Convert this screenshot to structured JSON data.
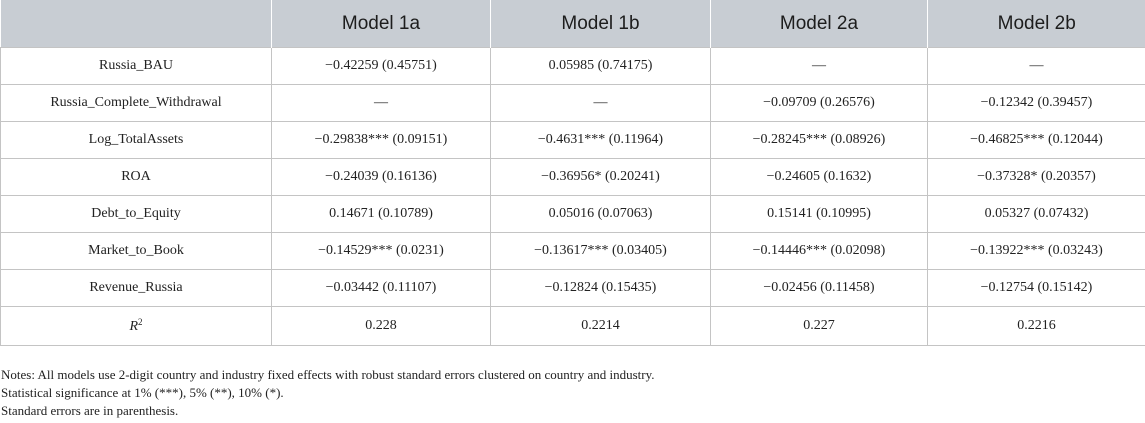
{
  "table": {
    "columns": [
      "",
      "Model 1a",
      "Model 1b",
      "Model 2a",
      "Model 2b"
    ],
    "rows": [
      {
        "label": "Russia_BAU",
        "cells": [
          "−0.42259 (0.45751)",
          "0.05985 (0.74175)",
          "—",
          "—"
        ]
      },
      {
        "label": "Russia_Complete_Withdrawal",
        "cells": [
          "—",
          "—",
          "−0.09709 (0.26576)",
          "−0.12342 (0.39457)"
        ]
      },
      {
        "label": "Log_TotalAssets",
        "cells": [
          "−0.29838*** (0.09151)",
          "−0.4631*** (0.11964)",
          "−0.28245*** (0.08926)",
          "−0.46825*** (0.12044)"
        ]
      },
      {
        "label": "ROA",
        "cells": [
          "−0.24039 (0.16136)",
          "−0.36956* (0.20241)",
          "−0.24605 (0.1632)",
          "−0.37328* (0.20357)"
        ]
      },
      {
        "label": "Debt_to_Equity",
        "cells": [
          "0.14671 (0.10789)",
          "0.05016 (0.07063)",
          "0.15141 (0.10995)",
          "0.05327 (0.07432)"
        ]
      },
      {
        "label": "Market_to_Book",
        "cells": [
          "−0.14529*** (0.0231)",
          "−0.13617*** (0.03405)",
          "−0.14446*** (0.02098)",
          "−0.13922*** (0.03243)"
        ]
      },
      {
        "label": "Revenue_Russia",
        "cells": [
          "−0.03442 (0.11107)",
          "−0.12824 (0.15435)",
          "−0.02456 (0.11458)",
          "−0.12754 (0.15142)"
        ]
      }
    ],
    "r2": {
      "label": "R",
      "sup": "2",
      "cells": [
        "0.228",
        "0.2214",
        "0.227",
        "0.2216"
      ]
    }
  },
  "notes": [
    "Notes: All models use 2-digit country and industry fixed effects with robust standard errors clustered on country and industry.",
    "Statistical significance at 1% (***), 5% (**), 10% (*).",
    "Standard errors are in parenthesis."
  ]
}
